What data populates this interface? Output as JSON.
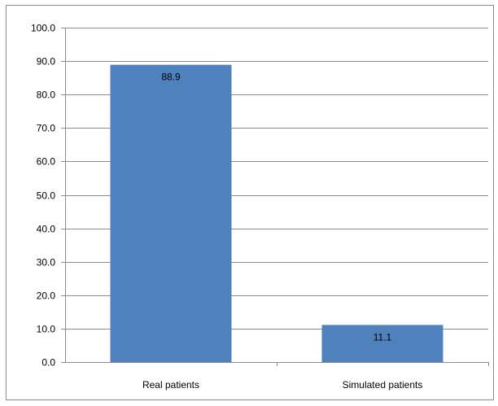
{
  "chart_data": {
    "type": "bar",
    "categories": [
      "Real patients",
      "Simulated patients"
    ],
    "values": [
      88.9,
      11.1
    ],
    "data_labels": [
      "88.9",
      "11.1"
    ],
    "title": "",
    "xlabel": "",
    "ylabel": "",
    "ylim": [
      0,
      100
    ],
    "yticks": [
      "0.0",
      "10.0",
      "20.0",
      "30.0",
      "40.0",
      "50.0",
      "60.0",
      "70.0",
      "80.0",
      "90.0",
      "100.0"
    ],
    "grid": true,
    "legend": "none",
    "bar_color": "#4f81bd",
    "grid_color": "#8c8c8c"
  }
}
